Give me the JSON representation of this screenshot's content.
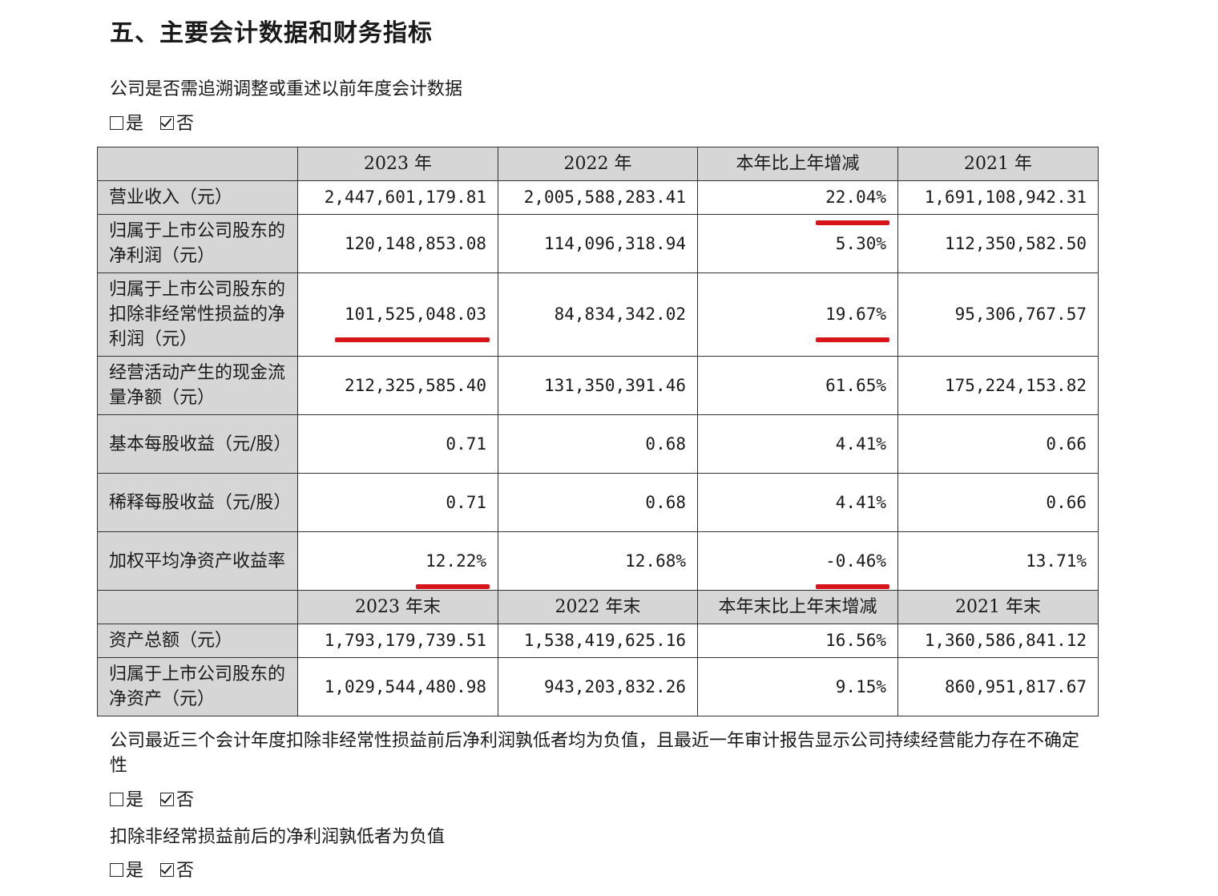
{
  "heading": "五、主要会计数据和财务指标",
  "q1": {
    "text": "公司是否需追溯调整或重述以前年度会计数据",
    "yes": "是",
    "no": "否"
  },
  "table": {
    "header1": [
      "2023 年",
      "2022 年",
      "本年比上年增减",
      "2021 年"
    ],
    "rows1": [
      {
        "label": "营业收入（元）",
        "values": [
          "2,447,601,179.81",
          "2,005,588,283.41",
          "22.04%",
          "1,691,108,942.31"
        ]
      },
      {
        "label": "归属于上市公司股东的净利润（元）",
        "values": [
          "120,148,853.08",
          "114,096,318.94",
          "5.30%",
          "112,350,582.50"
        ]
      },
      {
        "label": "归属于上市公司股东的扣除非经常性损益的净利润（元）",
        "values": [
          "101,525,048.03",
          "84,834,342.02",
          "19.67%",
          "95,306,767.57"
        ]
      },
      {
        "label": "经营活动产生的现金流量净额（元）",
        "values": [
          "212,325,585.40",
          "131,350,391.46",
          "61.65%",
          "175,224,153.82"
        ]
      },
      {
        "label": "基本每股收益（元/股）",
        "values": [
          "0.71",
          "0.68",
          "4.41%",
          "0.66"
        ]
      },
      {
        "label": "稀释每股收益（元/股）",
        "values": [
          "0.71",
          "0.68",
          "4.41%",
          "0.66"
        ]
      },
      {
        "label": "加权平均净资产收益率",
        "values": [
          "12.22%",
          "12.68%",
          "-0.46%",
          "13.71%"
        ]
      }
    ],
    "header2": [
      "2023 年末",
      "2022 年末",
      "本年末比上年末增减",
      "2021 年末"
    ],
    "rows2": [
      {
        "label": "资产总额（元）",
        "values": [
          "1,793,179,739.51",
          "1,538,419,625.16",
          "16.56%",
          "1,360,586,841.12"
        ]
      },
      {
        "label": "归属于上市公司股东的净资产（元）",
        "values": [
          "1,029,544,480.98",
          "943,203,832.26",
          "9.15%",
          "860,951,817.67"
        ]
      }
    ]
  },
  "q2": {
    "text": "公司最近三个会计年度扣除非经常性损益前后净利润孰低者均为负值，且最近一年审计报告显示公司持续经营能力存在不确定性",
    "yes": "是",
    "no": "否"
  },
  "q3": {
    "text": "扣除非经常损益前后的净利润孰低者为负值",
    "yes": "是",
    "no": "否"
  }
}
